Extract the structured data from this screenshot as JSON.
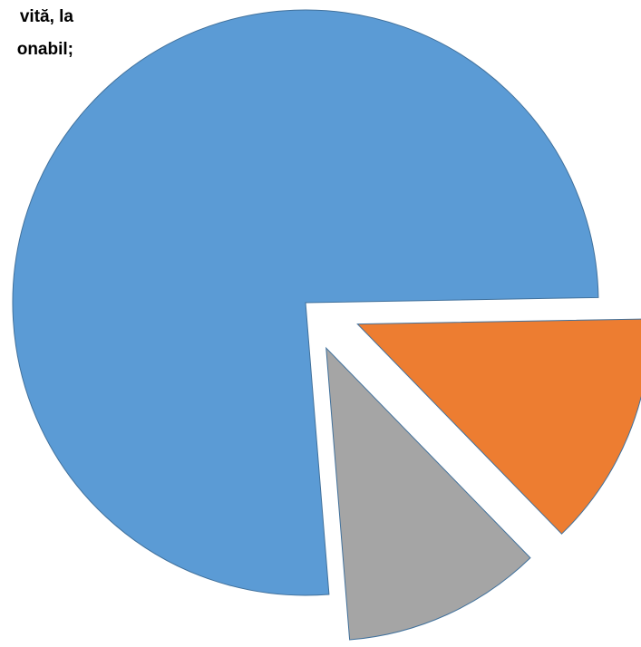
{
  "caption_fragments": {
    "line1": "vită, la",
    "line2": "onabil;"
  },
  "chart_data": {
    "type": "pie",
    "slices": [
      {
        "label": "",
        "value": 76,
        "color": "#5B9BD5"
      },
      {
        "label": "",
        "value": 13,
        "color": "#ED7D31"
      },
      {
        "label": "",
        "value": 11,
        "color": "#A5A5A5"
      }
    ],
    "exploded": true,
    "stroke_color": "#41719C",
    "legend": "none"
  }
}
